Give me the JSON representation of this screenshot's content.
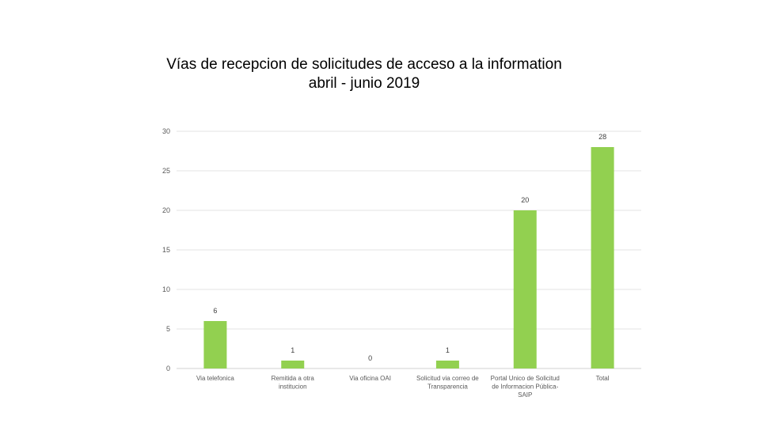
{
  "chart_data": {
    "type": "bar",
    "title_lines": [
      "Vías de recepcion de solicitudes de acceso a la information",
      "abril - junio 2019"
    ],
    "categories": [
      [
        "Via telefonica"
      ],
      [
        "Remitida a otra",
        "institucion"
      ],
      [
        "Via oficina OAI"
      ],
      [
        "Solicitud via correo de",
        "Transparencia"
      ],
      [
        "Portal Unico de Solicitud",
        "de Informacion Pública-",
        "SAIP"
      ],
      [
        "Total"
      ]
    ],
    "values": [
      6,
      1,
      0,
      1,
      20,
      28
    ],
    "ylim": [
      0,
      30
    ],
    "yticks": [
      0,
      5,
      10,
      15,
      20,
      25,
      30
    ],
    "bar_color": "#92d050",
    "grid": true,
    "legend": "none"
  }
}
